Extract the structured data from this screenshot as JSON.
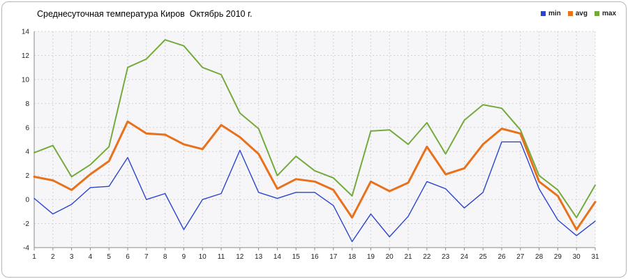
{
  "title": "Среднесуточная температура Киров  Октябрь 2010 г.",
  "legend": [
    {
      "label": "min",
      "color": "#2b44cc"
    },
    {
      "label": "avg",
      "color": "#e8711c"
    },
    {
      "label": "max",
      "color": "#74aa3c"
    }
  ],
  "chart_data": {
    "type": "line",
    "title": "Среднесуточная температура Киров  Октябрь 2010 г.",
    "xlabel": "",
    "ylabel": "",
    "x": [
      1,
      2,
      3,
      4,
      5,
      6,
      7,
      8,
      9,
      10,
      11,
      12,
      13,
      14,
      15,
      16,
      17,
      18,
      19,
      20,
      21,
      22,
      23,
      24,
      25,
      26,
      27,
      28,
      29,
      30,
      31
    ],
    "ylim": [
      -4,
      14
    ],
    "ytick_step": 2,
    "grid": true,
    "legend_position": "top-right",
    "series": [
      {
        "name": "min",
        "color": "#2b44cc",
        "line_width": 1.4,
        "values": [
          0.1,
          -1.2,
          -0.4,
          1.0,
          1.1,
          3.5,
          0.0,
          0.5,
          -2.5,
          0.0,
          0.5,
          4.1,
          0.6,
          0.1,
          0.6,
          0.6,
          -0.5,
          -3.5,
          -1.2,
          -3.1,
          -1.4,
          1.5,
          0.9,
          -0.7,
          0.6,
          4.8,
          4.8,
          0.9,
          -1.7,
          -3.0,
          -1.8
        ]
      },
      {
        "name": "avg",
        "color": "#e8711c",
        "line_width": 3,
        "values": [
          1.9,
          1.6,
          0.8,
          2.1,
          3.2,
          6.5,
          5.5,
          5.4,
          4.6,
          4.2,
          6.2,
          5.2,
          3.8,
          0.9,
          1.7,
          1.5,
          0.8,
          -1.5,
          1.5,
          0.7,
          1.4,
          4.4,
          2.1,
          2.6,
          4.6,
          5.9,
          5.5,
          1.5,
          0.3,
          -2.5,
          -0.2
        ]
      },
      {
        "name": "max",
        "color": "#74aa3c",
        "line_width": 2,
        "values": [
          3.9,
          4.5,
          1.9,
          2.9,
          4.4,
          11.0,
          11.7,
          13.3,
          12.8,
          11.0,
          10.4,
          7.2,
          5.9,
          2.0,
          3.6,
          2.4,
          1.8,
          0.3,
          5.7,
          5.8,
          4.6,
          6.4,
          3.8,
          6.6,
          7.9,
          7.6,
          5.8,
          2.0,
          0.8,
          -1.5,
          1.2
        ]
      }
    ]
  }
}
